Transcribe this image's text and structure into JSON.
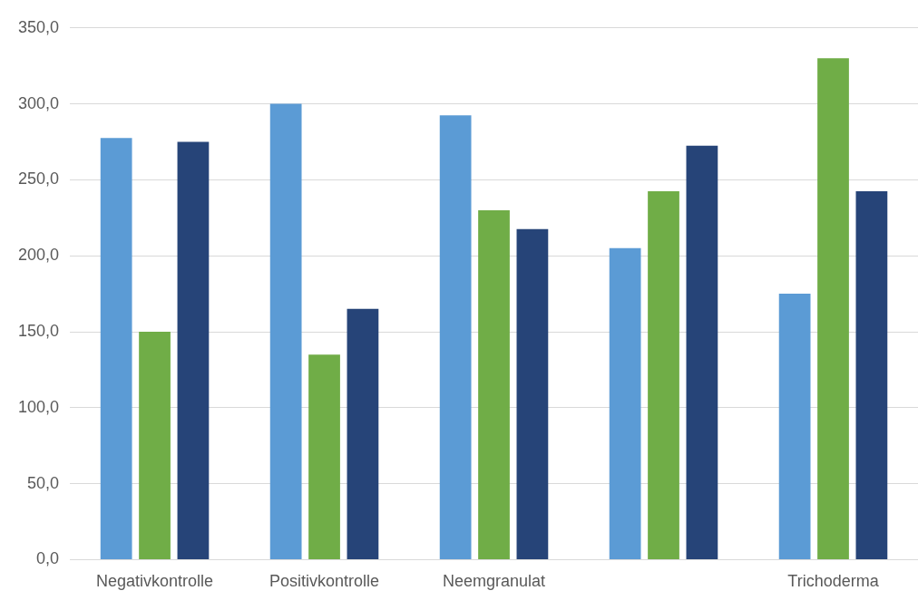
{
  "chart_data": {
    "type": "bar",
    "categories": [
      "Negativkontrolle",
      "Positivkontrolle",
      "Neemgranulat",
      null,
      "Trichoderma"
    ],
    "series": [
      {
        "color": "#5b9bd5",
        "values": [
          277.5,
          300,
          292.5,
          205,
          175
        ]
      },
      {
        "color": "#70ad47",
        "values": [
          150,
          135,
          230,
          242.5,
          330
        ]
      },
      {
        "color": "#264478",
        "values": [
          275,
          165,
          217.5,
          272.5,
          242.5
        ]
      }
    ],
    "ylim": [
      0,
      350
    ],
    "yticks": [
      {
        "value": 0,
        "label": "0,0"
      },
      {
        "value": 50,
        "label": "50,0"
      },
      {
        "value": 100,
        "label": "100,0"
      },
      {
        "value": 150,
        "label": "150,0"
      },
      {
        "value": 200,
        "label": "200,0"
      },
      {
        "value": 250,
        "label": "250,0"
      },
      {
        "value": 300,
        "label": "300,0"
      },
      {
        "value": 350,
        "label": "350,0"
      }
    ],
    "grid": "y",
    "legend": false
  }
}
